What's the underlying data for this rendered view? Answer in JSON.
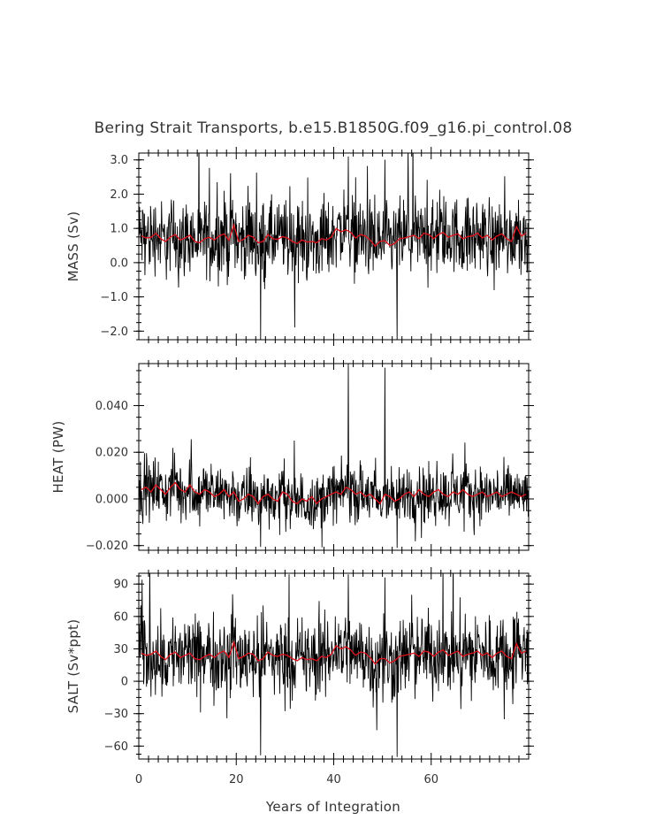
{
  "chart_data": {
    "type": "line",
    "title": "Bering Strait Transports, b.e15.B1850G.f09_g16.pi_control.08",
    "xlabel": "Years of Integration",
    "xlim": [
      0,
      80
    ],
    "x_ticks": [
      "0",
      "20",
      "40",
      "60"
    ],
    "x_tick_values": [
      0,
      20,
      40,
      60
    ],
    "grid": false,
    "legend": "none",
    "series_colors": {
      "monthly": "#000000",
      "annual": "#e0101a"
    },
    "panels": [
      {
        "ylabel": "MASS (Sv)",
        "ylim": [
          -2.25,
          3.2
        ],
        "y_tick_values": [
          -2.0,
          -1.0,
          0.0,
          1.0,
          2.0,
          3.0
        ],
        "y_tick_labels": [
          "−2.0",
          "−1.0",
          "0.0",
          "1.0",
          "2.0",
          "3.0"
        ],
        "mean": 0.75,
        "noise_amplitude": 0.55,
        "peak": 3.1,
        "trough": -2.3,
        "annual_values": [
          0.78,
          0.72,
          0.74,
          0.86,
          0.7,
          0.62,
          0.75,
          0.82,
          0.66,
          0.72,
          0.8,
          0.62,
          0.58,
          0.7,
          0.74,
          0.66,
          0.78,
          0.84,
          0.65,
          1.1,
          0.62,
          0.68,
          0.8,
          0.74,
          0.58,
          0.62,
          0.82,
          0.7,
          0.68,
          0.76,
          0.72,
          0.62,
          0.56,
          0.66,
          0.6,
          0.62,
          0.58,
          0.7,
          0.66,
          0.74,
          1.0,
          0.9,
          0.96,
          0.88,
          0.72,
          0.82,
          0.78,
          0.66,
          0.48,
          0.62,
          0.64,
          0.5,
          0.56,
          0.7,
          0.72,
          0.76,
          0.8,
          0.7,
          0.86,
          0.82,
          0.7,
          0.82,
          0.88,
          0.74,
          0.8,
          0.84,
          0.7,
          0.76,
          0.78,
          0.86,
          0.72,
          0.8,
          0.66,
          0.78,
          0.84,
          0.7,
          0.62,
          1.05,
          0.78,
          0.86
        ]
      },
      {
        "ylabel": "HEAT (PW)",
        "ylim": [
          -0.022,
          0.058
        ],
        "y_tick_values": [
          -0.02,
          0.0,
          0.02,
          0.04
        ],
        "y_tick_labels": [
          "−0.020",
          "0.000",
          "0.020",
          "0.040"
        ],
        "mean": 0.002,
        "noise_amplitude": 0.006,
        "peak": 0.058,
        "trough": -0.021,
        "annual_values": [
          0.004,
          0.005,
          0.003,
          0.006,
          0.004,
          0.002,
          0.005,
          0.007,
          0.004,
          0.003,
          0.006,
          0.003,
          0.002,
          0.004,
          0.003,
          0.001,
          0.002,
          0.004,
          0.001,
          0.003,
          -0.001,
          0.0,
          0.002,
          0.001,
          -0.002,
          0.001,
          0.002,
          0.0,
          -0.001,
          0.003,
          0.002,
          -0.001,
          -0.002,
          0.0,
          -0.001,
          0.001,
          -0.002,
          0.0,
          0.001,
          0.002,
          0.003,
          0.002,
          0.005,
          0.004,
          0.002,
          0.003,
          0.001,
          0.002,
          0.0,
          -0.002,
          0.002,
          0.001,
          -0.001,
          0.0,
          0.002,
          0.003,
          0.001,
          0.004,
          0.002,
          0.001,
          0.003,
          0.004,
          0.002,
          0.001,
          0.003,
          0.002,
          0.004,
          0.002,
          0.001,
          0.002,
          0.003,
          0.001,
          0.002,
          0.003,
          0.001,
          0.002,
          0.003,
          0.002,
          0.001,
          0.002
        ]
      },
      {
        "ylabel": "SALT (Sv*ppt)",
        "ylim": [
          -72,
          100
        ],
        "y_tick_values": [
          -60,
          -30,
          0,
          30,
          60,
          90
        ],
        "y_tick_labels": [
          "−60",
          "−30",
          "0",
          "30",
          "60",
          "90"
        ],
        "mean": 25,
        "noise_amplitude": 18,
        "peak": 99,
        "trough": -70,
        "annual_values": [
          26,
          24,
          25,
          28,
          23,
          20,
          25,
          27,
          22,
          24,
          26,
          21,
          20,
          23,
          25,
          22,
          26,
          28,
          22,
          36,
          21,
          23,
          26,
          25,
          19,
          21,
          27,
          24,
          23,
          25,
          24,
          21,
          19,
          22,
          20,
          21,
          19,
          23,
          22,
          25,
          33,
          30,
          32,
          29,
          24,
          27,
          26,
          22,
          16,
          21,
          21,
          17,
          19,
          23,
          24,
          25,
          26,
          23,
          28,
          27,
          23,
          27,
          29,
          24,
          26,
          28,
          23,
          25,
          26,
          28,
          24,
          26,
          22,
          26,
          28,
          23,
          21,
          35,
          26,
          28
        ]
      }
    ]
  }
}
